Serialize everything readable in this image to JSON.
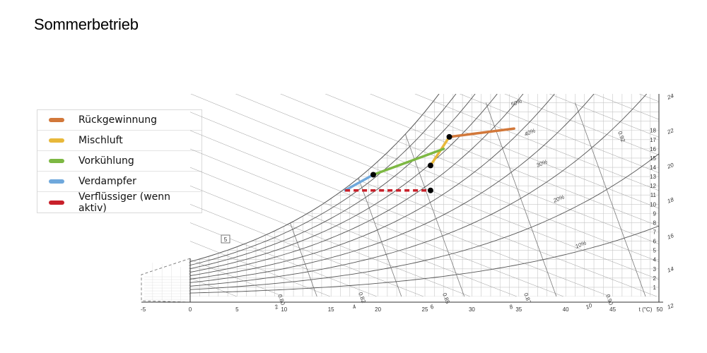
{
  "page": {
    "title": "Sommerbetrieb"
  },
  "legend": {
    "items": [
      {
        "label": "Rückgewinnung",
        "color": "#D2783A"
      },
      {
        "label": "Mischluft",
        "color": "#E8B83A"
      },
      {
        "label": "Vorkühlung",
        "color": "#7DB843"
      },
      {
        "label": "Verdampfer",
        "color": "#6FA8DC"
      },
      {
        "label": "Verflüssiger (wenn aktiv)",
        "color": "#C8202A"
      }
    ]
  },
  "chart_data": {
    "type": "line",
    "chart_kind": "psychrometric (Mollier h-x / Carrier)",
    "xlabel": "t (°C)",
    "x_ticks": [
      -5,
      0,
      5,
      10,
      15,
      20,
      25,
      30,
      35,
      40,
      45,
      50
    ],
    "xlim": [
      -5,
      50
    ],
    "y_right_ticks": [
      1,
      2,
      3,
      4,
      5,
      6,
      7,
      8,
      9,
      10,
      11,
      12,
      13,
      14,
      15,
      16,
      17,
      18
    ],
    "ylim": [
      0,
      19
    ],
    "rh_labels": [
      "10%",
      "20%",
      "30%",
      "40%",
      "50%"
    ],
    "rh_curves": [
      10,
      20,
      30,
      40,
      50,
      60,
      70,
      80,
      90,
      100
    ],
    "specific_volume_labels": [
      "0.80",
      "0.82",
      "0.85",
      "0.87",
      "0.90",
      "0.92"
    ],
    "outer_scale_labels": [
      "12",
      "14",
      "16",
      "18",
      "20",
      "22",
      "24"
    ],
    "inner_scale_labels": [
      "2",
      "4",
      "6",
      "8",
      "10"
    ],
    "box_marker": "5",
    "series": [
      {
        "name": "Rückgewinnung",
        "color": "#D2783A",
        "style": "solid",
        "points": [
          {
            "t": 27.6,
            "x": 17.3
          },
          {
            "t": 34.5,
            "x": 18.2
          }
        ]
      },
      {
        "name": "Mischluft",
        "color": "#E8B83A",
        "style": "solid",
        "points": [
          {
            "t": 25.6,
            "x": 14.2
          },
          {
            "t": 27.6,
            "x": 17.3
          }
        ]
      },
      {
        "name": "Vorkühlung",
        "color": "#7DB843",
        "style": "solid",
        "points": [
          {
            "t": 19.5,
            "x": 13.2
          },
          {
            "t": 27.0,
            "x": 16.0
          }
        ]
      },
      {
        "name": "Verdampfer",
        "color": "#6FA8DC",
        "style": "solid",
        "points": [
          {
            "t": 16.5,
            "x": 11.5
          },
          {
            "t": 19.5,
            "x": 13.2
          }
        ]
      },
      {
        "name": "Verflüssiger (wenn aktiv)",
        "color": "#C8202A",
        "style": "dashed",
        "points": [
          {
            "t": 16.5,
            "x": 11.5
          },
          {
            "t": 25.6,
            "x": 11.5
          }
        ]
      }
    ],
    "state_points": [
      {
        "t": 27.6,
        "x": 17.3
      },
      {
        "t": 25.6,
        "x": 14.2
      },
      {
        "t": 19.5,
        "x": 13.2
      },
      {
        "t": 25.6,
        "x": 11.5
      }
    ]
  }
}
